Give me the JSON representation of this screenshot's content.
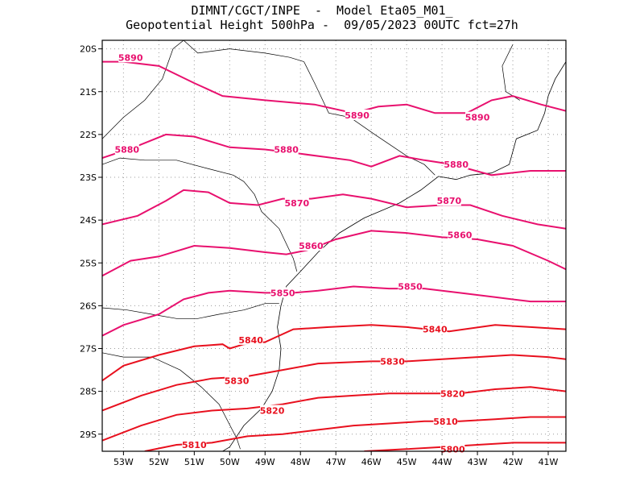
{
  "header": {
    "title_line1": "DIMNT/CGCT/INPE  -  Model Eta05_M01_",
    "title_line2": "Geopotential Height 500hPa -  09/05/2023 00UTC fct=27h"
  },
  "axes": {
    "lat_labels": [
      "20S",
      "21S",
      "22S",
      "23S",
      "24S",
      "25S",
      "26S",
      "27S",
      "28S",
      "29S"
    ],
    "lat_values": [
      -20,
      -21,
      -22,
      -23,
      -24,
      -25,
      -26,
      -27,
      -28,
      -29
    ],
    "lon_labels": [
      "53W",
      "52W",
      "51W",
      "50W",
      "49W",
      "48W",
      "47W",
      "46W",
      "45W",
      "44W",
      "43W",
      "42W",
      "41W"
    ],
    "lon_values": [
      -53,
      -52,
      -51,
      -50,
      -49,
      -48,
      -47,
      -46,
      -45,
      -44,
      -43,
      -42,
      -41
    ],
    "lon_range": [
      -53.6,
      -40.5
    ],
    "lat_range": [
      -29.4,
      -19.8
    ],
    "grid": "dotted"
  },
  "colors": {
    "high": "#e8106e",
    "low": "#e8101e",
    "coast": "#000000",
    "grid": "#999999"
  },
  "contours": [
    {
      "value": 5890,
      "label": "5890",
      "points": [
        [
          -53.6,
          -20.3
        ],
        [
          -53.0,
          -20.3
        ],
        [
          -52.0,
          -20.4
        ],
        [
          -51.0,
          -20.8
        ],
        [
          -50.2,
          -21.1
        ],
        [
          -49.0,
          -21.2
        ],
        [
          -47.6,
          -21.3
        ],
        [
          -46.5,
          -21.5
        ],
        [
          -45.8,
          -21.35
        ],
        [
          -45.0,
          -21.3
        ],
        [
          -44.2,
          -21.5
        ],
        [
          -43.3,
          -21.5
        ],
        [
          -42.6,
          -21.2
        ],
        [
          -42.0,
          -21.1
        ],
        [
          -41.2,
          -21.3
        ],
        [
          -40.5,
          -21.45
        ]
      ],
      "labels": [
        {
          "text": "5890",
          "lon": -52.8,
          "lat": -20.2
        },
        {
          "text": "5890",
          "lon": -46.4,
          "lat": -21.55
        },
        {
          "text": "5890",
          "lon": -43.0,
          "lat": -21.6
        }
      ]
    },
    {
      "value": 5880,
      "label": "5880",
      "points": [
        [
          -53.6,
          -22.55
        ],
        [
          -52.7,
          -22.3
        ],
        [
          -51.8,
          -22.0
        ],
        [
          -51.0,
          -22.05
        ],
        [
          -50.0,
          -22.3
        ],
        [
          -49.0,
          -22.35
        ],
        [
          -48.0,
          -22.45
        ],
        [
          -46.6,
          -22.6
        ],
        [
          -46.0,
          -22.75
        ],
        [
          -45.2,
          -22.5
        ],
        [
          -44.5,
          -22.6
        ],
        [
          -43.7,
          -22.7
        ],
        [
          -42.6,
          -22.95
        ],
        [
          -41.5,
          -22.85
        ],
        [
          -40.5,
          -22.85
        ]
      ],
      "labels": [
        {
          "text": "5880",
          "lon": -52.9,
          "lat": -22.35
        },
        {
          "text": "5880",
          "lon": -48.4,
          "lat": -22.35
        },
        {
          "text": "5880",
          "lon": -43.6,
          "lat": -22.7
        }
      ]
    },
    {
      "value": 5870,
      "label": "5870",
      "points": [
        [
          -53.6,
          -24.1
        ],
        [
          -52.6,
          -23.9
        ],
        [
          -51.8,
          -23.55
        ],
        [
          -51.3,
          -23.3
        ],
        [
          -50.6,
          -23.35
        ],
        [
          -50.0,
          -23.6
        ],
        [
          -49.2,
          -23.65
        ],
        [
          -48.5,
          -23.5
        ],
        [
          -47.7,
          -23.5
        ],
        [
          -46.8,
          -23.4
        ],
        [
          -46.0,
          -23.5
        ],
        [
          -45.0,
          -23.7
        ],
        [
          -44.0,
          -23.65
        ],
        [
          -43.2,
          -23.65
        ],
        [
          -42.3,
          -23.9
        ],
        [
          -41.3,
          -24.1
        ],
        [
          -40.5,
          -24.2
        ]
      ],
      "labels": [
        {
          "text": "5870",
          "lon": -48.1,
          "lat": -23.6
        },
        {
          "text": "5870",
          "lon": -43.8,
          "lat": -23.55
        }
      ]
    },
    {
      "value": 5860,
      "label": "5860",
      "points": [
        [
          -53.6,
          -25.3
        ],
        [
          -52.8,
          -24.95
        ],
        [
          -52.0,
          -24.85
        ],
        [
          -51.0,
          -24.6
        ],
        [
          -50.0,
          -24.65
        ],
        [
          -49.0,
          -24.75
        ],
        [
          -48.4,
          -24.8
        ],
        [
          -47.8,
          -24.7
        ],
        [
          -47.0,
          -24.45
        ],
        [
          -46.0,
          -24.25
        ],
        [
          -45.0,
          -24.3
        ],
        [
          -44.0,
          -24.4
        ],
        [
          -43.0,
          -24.45
        ],
        [
          -42.0,
          -24.6
        ],
        [
          -41.0,
          -24.95
        ],
        [
          -40.5,
          -25.15
        ]
      ],
      "labels": [
        {
          "text": "5860",
          "lon": -47.7,
          "lat": -24.6
        },
        {
          "text": "5860",
          "lon": -43.5,
          "lat": -24.35
        }
      ]
    },
    {
      "value": 5850,
      "label": "5850",
      "points": [
        [
          -53.6,
          -26.7
        ],
        [
          -53.0,
          -26.45
        ],
        [
          -52.0,
          -26.2
        ],
        [
          -51.3,
          -25.85
        ],
        [
          -50.6,
          -25.7
        ],
        [
          -50.0,
          -25.65
        ],
        [
          -49.0,
          -25.7
        ],
        [
          -48.2,
          -25.7
        ],
        [
          -47.5,
          -25.65
        ],
        [
          -46.5,
          -25.55
        ],
        [
          -45.5,
          -25.6
        ],
        [
          -44.5,
          -25.6
        ],
        [
          -43.5,
          -25.7
        ],
        [
          -42.5,
          -25.8
        ],
        [
          -41.5,
          -25.9
        ],
        [
          -40.5,
          -25.9
        ]
      ],
      "labels": [
        {
          "text": "5850",
          "lon": -48.5,
          "lat": -25.7
        },
        {
          "text": "5850",
          "lon": -44.9,
          "lat": -25.55
        }
      ]
    },
    {
      "value": 5840,
      "label": "5840",
      "points": [
        [
          -53.6,
          -27.75
        ],
        [
          -53.0,
          -27.4
        ],
        [
          -52.0,
          -27.15
        ],
        [
          -51.0,
          -26.95
        ],
        [
          -50.2,
          -26.9
        ],
        [
          -50.0,
          -27.0
        ],
        [
          -49.6,
          -26.9
        ],
        [
          -49.0,
          -26.85
        ],
        [
          -48.2,
          -26.55
        ],
        [
          -47.2,
          -26.5
        ],
        [
          -46.0,
          -26.45
        ],
        [
          -45.0,
          -26.5
        ],
        [
          -43.8,
          -26.6
        ],
        [
          -42.5,
          -26.45
        ],
        [
          -41.5,
          -26.5
        ],
        [
          -40.5,
          -26.55
        ]
      ],
      "labels": [
        {
          "text": "5840",
          "lon": -49.4,
          "lat": -26.8
        },
        {
          "text": "5840",
          "lon": -44.2,
          "lat": -26.55
        }
      ]
    },
    {
      "value": 5830,
      "label": "5830",
      "points": [
        [
          -53.6,
          -28.45
        ],
        [
          -52.5,
          -28.1
        ],
        [
          -51.5,
          -27.85
        ],
        [
          -50.5,
          -27.7
        ],
        [
          -49.5,
          -27.65
        ],
        [
          -48.5,
          -27.5
        ],
        [
          -47.5,
          -27.35
        ],
        [
          -46.0,
          -27.3
        ],
        [
          -45.0,
          -27.3
        ],
        [
          -44.0,
          -27.25
        ],
        [
          -43.0,
          -27.2
        ],
        [
          -42.0,
          -27.15
        ],
        [
          -41.0,
          -27.2
        ],
        [
          -40.5,
          -27.25
        ]
      ],
      "labels": [
        {
          "text": "5830",
          "lon": -49.8,
          "lat": -27.75
        },
        {
          "text": "5830",
          "lon": -45.4,
          "lat": -27.3
        }
      ]
    },
    {
      "value": 5820,
      "label": "5820",
      "points": [
        [
          -53.6,
          -29.15
        ],
        [
          -52.5,
          -28.8
        ],
        [
          -51.5,
          -28.55
        ],
        [
          -50.5,
          -28.45
        ],
        [
          -49.5,
          -28.4
        ],
        [
          -48.5,
          -28.3
        ],
        [
          -47.5,
          -28.15
        ],
        [
          -46.5,
          -28.1
        ],
        [
          -45.5,
          -28.05
        ],
        [
          -44.5,
          -28.05
        ],
        [
          -43.5,
          -28.05
        ],
        [
          -42.5,
          -27.95
        ],
        [
          -41.5,
          -27.9
        ],
        [
          -40.5,
          -28.0
        ]
      ],
      "labels": [
        {
          "text": "5820",
          "lon": -48.8,
          "lat": -28.45
        },
        {
          "text": "5820",
          "lon": -43.7,
          "lat": -28.05
        }
      ]
    },
    {
      "value": 5810,
      "label": "5810",
      "points": [
        [
          -52.4,
          -29.4
        ],
        [
          -51.5,
          -29.25
        ],
        [
          -50.5,
          -29.2
        ],
        [
          -49.5,
          -29.05
        ],
        [
          -48.5,
          -29.0
        ],
        [
          -47.5,
          -28.9
        ],
        [
          -46.5,
          -28.8
        ],
        [
          -45.5,
          -28.75
        ],
        [
          -44.5,
          -28.7
        ],
        [
          -43.5,
          -28.7
        ],
        [
          -42.5,
          -28.65
        ],
        [
          -41.5,
          -28.6
        ],
        [
          -40.5,
          -28.6
        ]
      ],
      "labels": [
        {
          "text": "5810",
          "lon": -51.0,
          "lat": -29.25
        },
        {
          "text": "5810",
          "lon": -43.9,
          "lat": -28.7
        }
      ]
    },
    {
      "value": 5800,
      "label": "5800",
      "points": [
        [
          -46.2,
          -29.4
        ],
        [
          -45.0,
          -29.35
        ],
        [
          -44.0,
          -29.3
        ],
        [
          -43.0,
          -29.25
        ],
        [
          -42.0,
          -29.2
        ],
        [
          -41.0,
          -29.2
        ],
        [
          -40.5,
          -29.2
        ]
      ],
      "labels": [
        {
          "text": "5800",
          "lon": -43.7,
          "lat": -29.35
        }
      ]
    }
  ],
  "coastline": [
    [
      -40.5,
      -20.3
    ],
    [
      -40.8,
      -20.7
    ],
    [
      -41.0,
      -21.1
    ],
    [
      -41.1,
      -21.5
    ],
    [
      -41.3,
      -21.9
    ],
    [
      -41.9,
      -22.1
    ],
    [
      -42.1,
      -22.7
    ],
    [
      -42.6,
      -22.9
    ],
    [
      -43.2,
      -22.95
    ],
    [
      -43.6,
      -23.05
    ],
    [
      -44.1,
      -22.98
    ],
    [
      -44.6,
      -23.3
    ],
    [
      -45.2,
      -23.6
    ],
    [
      -46.2,
      -23.95
    ],
    [
      -46.9,
      -24.3
    ],
    [
      -47.5,
      -24.75
    ],
    [
      -48.0,
      -25.2
    ],
    [
      -48.4,
      -25.55
    ],
    [
      -48.55,
      -26.0
    ],
    [
      -48.65,
      -26.5
    ],
    [
      -48.55,
      -27.0
    ],
    [
      -48.6,
      -27.5
    ],
    [
      -48.8,
      -28.0
    ],
    [
      -49.1,
      -28.4
    ],
    [
      -49.6,
      -28.8
    ],
    [
      -50.0,
      -29.3
    ],
    [
      -50.2,
      -29.4
    ]
  ],
  "borders": [
    [
      [
        -53.6,
        -22.1
      ],
      [
        -53.0,
        -21.6
      ],
      [
        -52.4,
        -21.2
      ],
      [
        -51.9,
        -20.7
      ],
      [
        -51.6,
        -20.0
      ],
      [
        -51.3,
        -19.8
      ]
    ],
    [
      [
        -53.1,
        -22.55
      ],
      [
        -52.4,
        -22.6
      ],
      [
        -51.5,
        -22.6
      ],
      [
        -50.6,
        -22.8
      ],
      [
        -49.9,
        -22.95
      ],
      [
        -49.6,
        -23.1
      ],
      [
        -49.3,
        -23.4
      ],
      [
        -49.1,
        -23.8
      ],
      [
        -48.6,
        -24.2
      ],
      [
        -48.2,
        -24.9
      ],
      [
        -48.1,
        -25.2
      ]
    ],
    [
      [
        -53.6,
        -26.05
      ],
      [
        -52.9,
        -26.1
      ],
      [
        -52.2,
        -26.2
      ],
      [
        -51.5,
        -26.3
      ],
      [
        -50.9,
        -26.3
      ],
      [
        -50.3,
        -26.2
      ],
      [
        -49.6,
        -26.1
      ],
      [
        -49.0,
        -25.95
      ],
      [
        -48.6,
        -25.95
      ]
    ],
    [
      [
        -53.6,
        -27.1
      ],
      [
        -53.0,
        -27.2
      ],
      [
        -52.2,
        -27.2
      ],
      [
        -51.4,
        -27.5
      ],
      [
        -50.8,
        -27.9
      ],
      [
        -50.3,
        -28.3
      ],
      [
        -49.8,
        -29.1
      ],
      [
        -49.7,
        -29.35
      ]
    ],
    [
      [
        -53.1,
        -22.55
      ],
      [
        -53.6,
        -22.7
      ]
    ],
    [
      [
        -51.3,
        -19.8
      ],
      [
        -50.9,
        -20.1
      ],
      [
        -50.0,
        -20.0
      ],
      [
        -49.0,
        -20.1
      ],
      [
        -48.3,
        -20.2
      ],
      [
        -47.9,
        -20.3
      ]
    ],
    [
      [
        -47.9,
        -20.3
      ],
      [
        -47.6,
        -20.8
      ],
      [
        -47.2,
        -21.5
      ],
      [
        -46.6,
        -21.6
      ],
      [
        -45.9,
        -22.0
      ],
      [
        -45.0,
        -22.5
      ],
      [
        -44.5,
        -22.7
      ],
      [
        -44.2,
        -22.95
      ]
    ],
    [
      [
        -41.8,
        -21.2
      ],
      [
        -42.2,
        -21.0
      ],
      [
        -42.3,
        -20.4
      ],
      [
        -42.0,
        -19.9
      ]
    ]
  ]
}
